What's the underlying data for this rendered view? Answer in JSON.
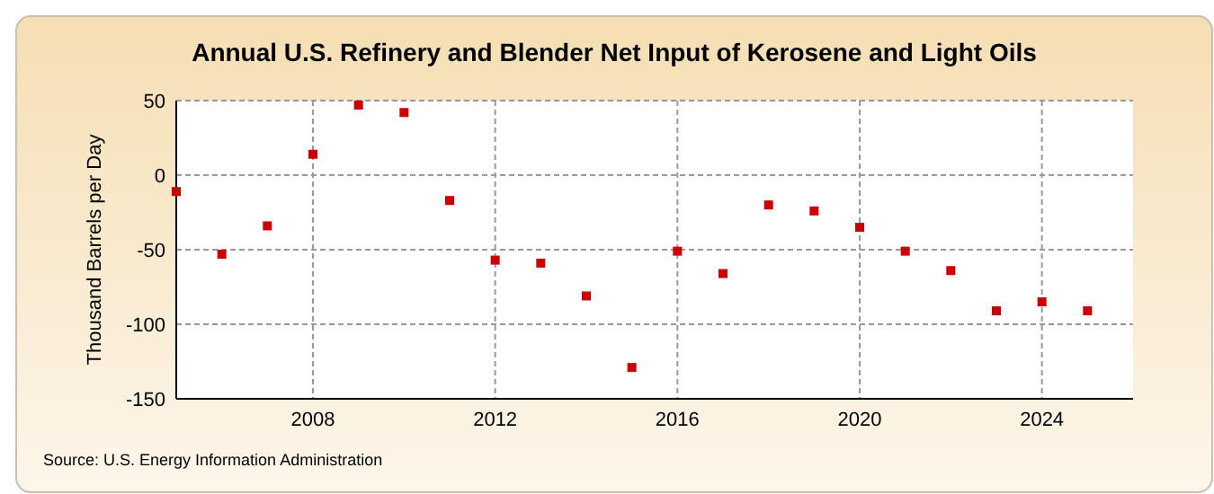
{
  "chart_data": {
    "type": "scatter",
    "title": "Annual U.S. Refinery and Blender Net Input of Kerosene and Light Oils",
    "ylabel": "Thousand Barrels per Day",
    "annotations": [
      "Source: U.S. Energy Information Administration"
    ],
    "x": [
      2005,
      2006,
      2007,
      2008,
      2009,
      2010,
      2011,
      2012,
      2013,
      2014,
      2015,
      2016,
      2017,
      2018,
      2019,
      2020,
      2021,
      2022,
      2023,
      2024,
      2025
    ],
    "series": [
      {
        "color": "#cc0000",
        "values": [
          -11,
          -53,
          -34,
          14,
          47,
          42,
          -17,
          -57,
          -59,
          -81,
          -129,
          -51,
          -66,
          -20,
          -24,
          -35,
          -51,
          -64,
          -91,
          -85,
          -91
        ]
      }
    ],
    "xlim": [
      2005,
      2026
    ],
    "xticks": [
      2008,
      2012,
      2016,
      2020,
      2024
    ],
    "ylim": [
      -150,
      50
    ],
    "yticks": [
      -150,
      -100,
      -50,
      0,
      50
    ],
    "grid": true,
    "marker": "square"
  }
}
